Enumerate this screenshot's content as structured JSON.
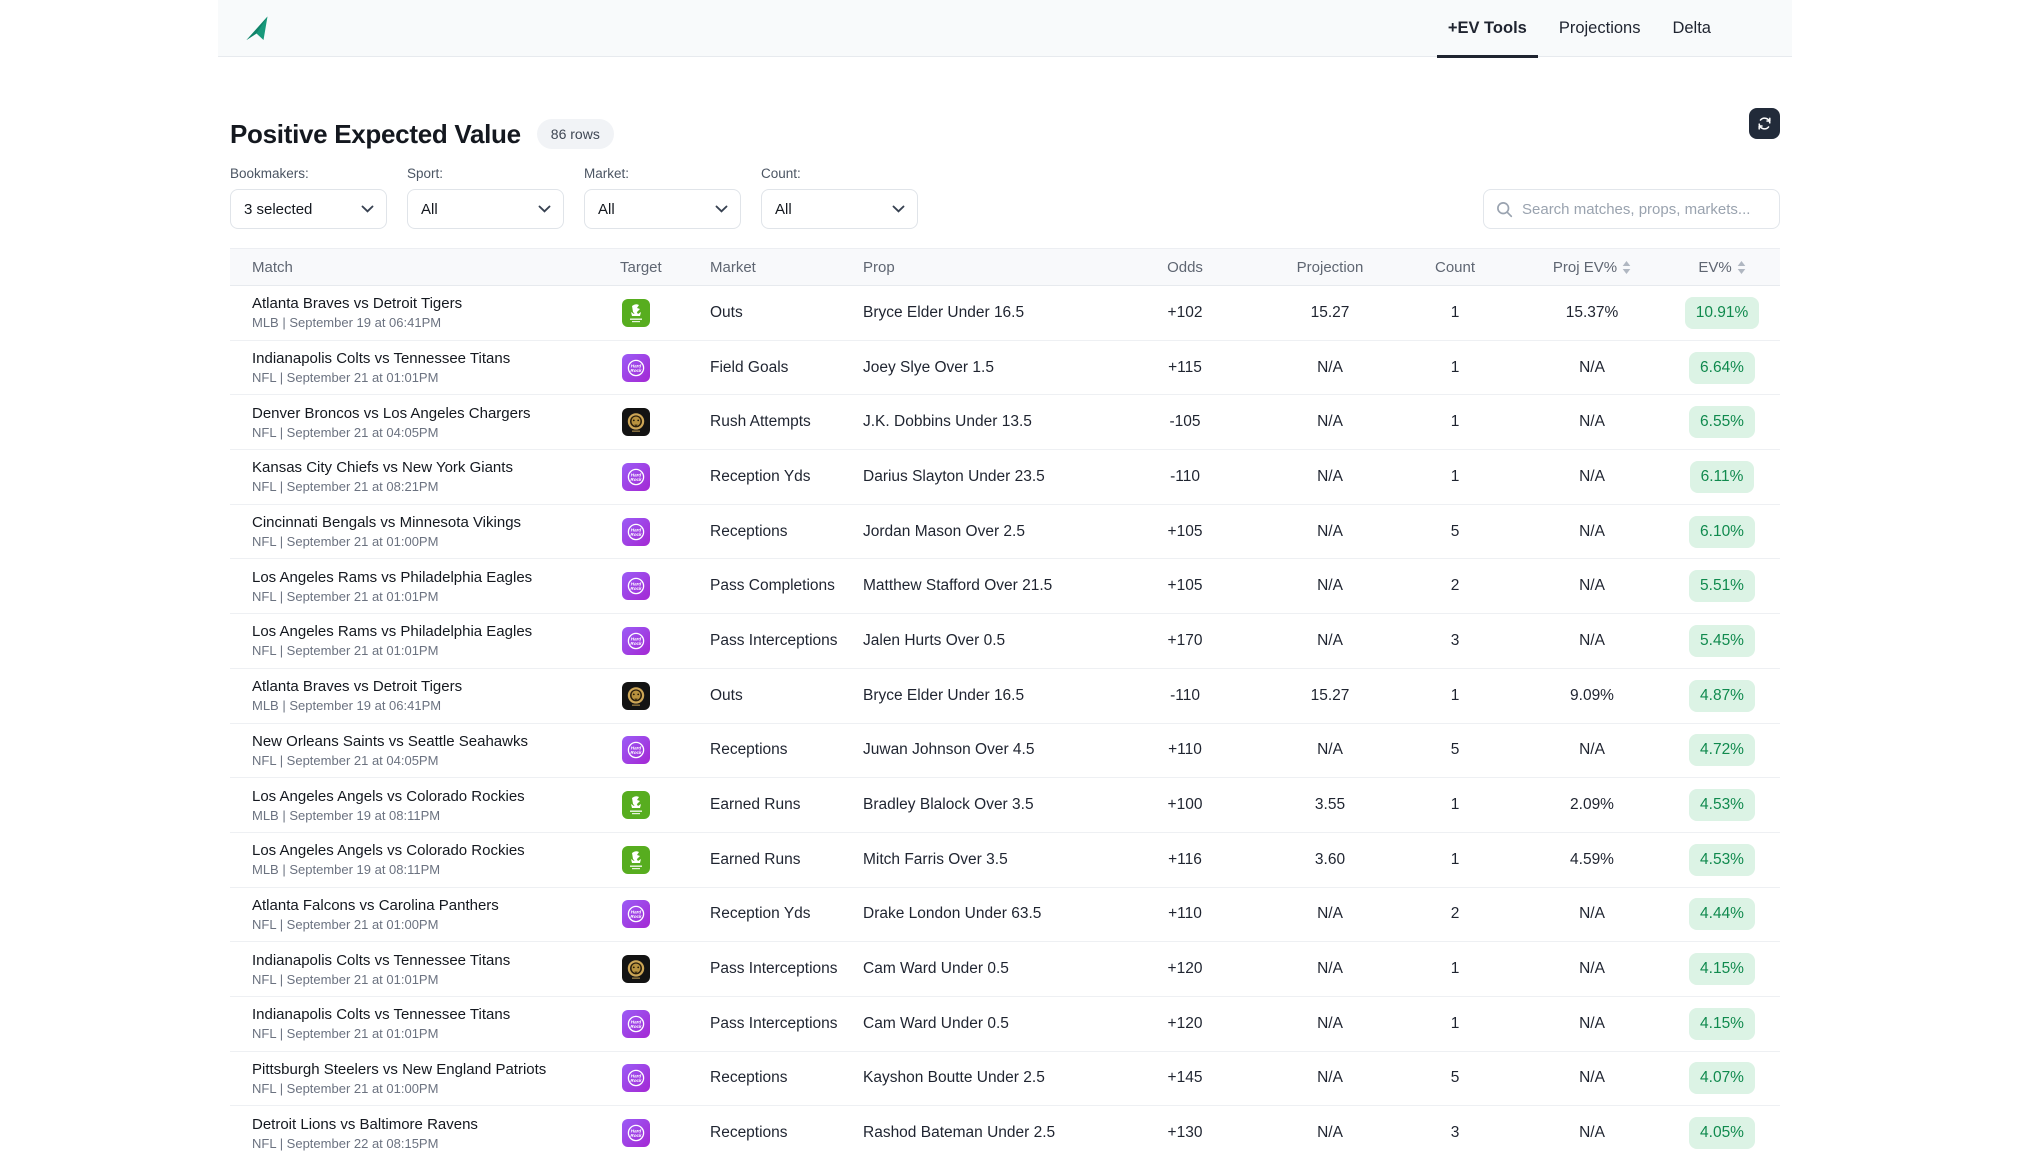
{
  "nav": {
    "tabs": [
      {
        "label": "+EV Tools",
        "active": true
      },
      {
        "label": "Projections",
        "active": false
      },
      {
        "label": "Delta",
        "active": false
      }
    ]
  },
  "page": {
    "title": "Positive Expected Value",
    "row_count_badge": "86 rows"
  },
  "filters": [
    {
      "id": "bookmakers",
      "label": "Bookmakers:",
      "value": "3 selected"
    },
    {
      "id": "sport",
      "label": "Sport:",
      "value": "All"
    },
    {
      "id": "market",
      "label": "Market:",
      "value": "All"
    },
    {
      "id": "count",
      "label": "Count:",
      "value": "All"
    }
  ],
  "search": {
    "placeholder": "Search matches, props, markets..."
  },
  "colors": {
    "accent_teal": "#18997b",
    "ev_badge_bg": "#dcf3e5",
    "ev_badge_text": "#108a4e",
    "refresh_bg": "#222b3a"
  },
  "table": {
    "columns": [
      {
        "label": "Match",
        "sortable": false
      },
      {
        "label": "Target",
        "sortable": false
      },
      {
        "label": "Market",
        "sortable": false
      },
      {
        "label": "Prop",
        "sortable": false
      },
      {
        "label": "Odds",
        "sortable": false
      },
      {
        "label": "Projection",
        "sortable": false
      },
      {
        "label": "Count",
        "sortable": false
      },
      {
        "label": "Proj EV%",
        "sortable": true
      },
      {
        "label": "EV%",
        "sortable": true
      }
    ],
    "rows": [
      {
        "match": "Atlanta Braves vs Detroit Tigers",
        "sub": "MLB | September 19 at 06:41PM",
        "bookmaker": "draftkings",
        "market": "Outs",
        "prop": "Bryce Elder Under 16.5",
        "odds": "+102",
        "projection": "15.27",
        "count": "1",
        "proj_ev": "15.37%",
        "ev": "10.91%"
      },
      {
        "match": "Indianapolis Colts vs Tennessee Titans",
        "sub": "NFL | September 21 at 01:01PM",
        "bookmaker": "hardrock",
        "market": "Field Goals",
        "prop": "Joey Slye Over 1.5",
        "odds": "+115",
        "projection": "N/A",
        "count": "1",
        "proj_ev": "N/A",
        "ev": "6.64%"
      },
      {
        "match": "Denver Broncos vs Los Angeles Chargers",
        "sub": "NFL | September 21 at 04:05PM",
        "bookmaker": "betmgm",
        "market": "Rush Attempts",
        "prop": "J.K. Dobbins Under 13.5",
        "odds": "-105",
        "projection": "N/A",
        "count": "1",
        "proj_ev": "N/A",
        "ev": "6.55%"
      },
      {
        "match": "Kansas City Chiefs vs New York Giants",
        "sub": "NFL | September 21 at 08:21PM",
        "bookmaker": "hardrock",
        "market": "Reception Yds",
        "prop": "Darius Slayton Under 23.5",
        "odds": "-110",
        "projection": "N/A",
        "count": "1",
        "proj_ev": "N/A",
        "ev": "6.11%"
      },
      {
        "match": "Cincinnati Bengals vs Minnesota Vikings",
        "sub": "NFL | September 21 at 01:00PM",
        "bookmaker": "hardrock",
        "market": "Receptions",
        "prop": "Jordan Mason Over 2.5",
        "odds": "+105",
        "projection": "N/A",
        "count": "5",
        "proj_ev": "N/A",
        "ev": "6.10%"
      },
      {
        "match": "Los Angeles Rams vs Philadelphia Eagles",
        "sub": "NFL | September 21 at 01:01PM",
        "bookmaker": "hardrock",
        "market": "Pass Completions",
        "prop": "Matthew Stafford Over 21.5",
        "odds": "+105",
        "projection": "N/A",
        "count": "2",
        "proj_ev": "N/A",
        "ev": "5.51%"
      },
      {
        "match": "Los Angeles Rams vs Philadelphia Eagles",
        "sub": "NFL | September 21 at 01:01PM",
        "bookmaker": "hardrock",
        "market": "Pass Interceptions",
        "prop": "Jalen Hurts Over 0.5",
        "odds": "+170",
        "projection": "N/A",
        "count": "3",
        "proj_ev": "N/A",
        "ev": "5.45%"
      },
      {
        "match": "Atlanta Braves vs Detroit Tigers",
        "sub": "MLB | September 19 at 06:41PM",
        "bookmaker": "betmgm",
        "market": "Outs",
        "prop": "Bryce Elder Under 16.5",
        "odds": "-110",
        "projection": "15.27",
        "count": "1",
        "proj_ev": "9.09%",
        "ev": "4.87%"
      },
      {
        "match": "New Orleans Saints vs Seattle Seahawks",
        "sub": "NFL | September 21 at 04:05PM",
        "bookmaker": "hardrock",
        "market": "Receptions",
        "prop": "Juwan Johnson Over 4.5",
        "odds": "+110",
        "projection": "N/A",
        "count": "5",
        "proj_ev": "N/A",
        "ev": "4.72%"
      },
      {
        "match": "Los Angeles Angels vs Colorado Rockies",
        "sub": "MLB | September 19 at 08:11PM",
        "bookmaker": "draftkings",
        "market": "Earned Runs",
        "prop": "Bradley Blalock Over 3.5",
        "odds": "+100",
        "projection": "3.55",
        "count": "1",
        "proj_ev": "2.09%",
        "ev": "4.53%"
      },
      {
        "match": "Los Angeles Angels vs Colorado Rockies",
        "sub": "MLB | September 19 at 08:11PM",
        "bookmaker": "draftkings",
        "market": "Earned Runs",
        "prop": "Mitch Farris Over 3.5",
        "odds": "+116",
        "projection": "3.60",
        "count": "1",
        "proj_ev": "4.59%",
        "ev": "4.53%"
      },
      {
        "match": "Atlanta Falcons vs Carolina Panthers",
        "sub": "NFL | September 21 at 01:00PM",
        "bookmaker": "hardrock",
        "market": "Reception Yds",
        "prop": "Drake London Under 63.5",
        "odds": "+110",
        "projection": "N/A",
        "count": "2",
        "proj_ev": "N/A",
        "ev": "4.44%"
      },
      {
        "match": "Indianapolis Colts vs Tennessee Titans",
        "sub": "NFL | September 21 at 01:01PM",
        "bookmaker": "betmgm",
        "market": "Pass Interceptions",
        "prop": "Cam Ward Under 0.5",
        "odds": "+120",
        "projection": "N/A",
        "count": "1",
        "proj_ev": "N/A",
        "ev": "4.15%"
      },
      {
        "match": "Indianapolis Colts vs Tennessee Titans",
        "sub": "NFL | September 21 at 01:01PM",
        "bookmaker": "hardrock",
        "market": "Pass Interceptions",
        "prop": "Cam Ward Under 0.5",
        "odds": "+120",
        "projection": "N/A",
        "count": "1",
        "proj_ev": "N/A",
        "ev": "4.15%"
      },
      {
        "match": "Pittsburgh Steelers vs New England Patriots",
        "sub": "NFL | September 21 at 01:00PM",
        "bookmaker": "hardrock",
        "market": "Receptions",
        "prop": "Kayshon Boutte Under 2.5",
        "odds": "+145",
        "projection": "N/A",
        "count": "5",
        "proj_ev": "N/A",
        "ev": "4.07%"
      },
      {
        "match": "Detroit Lions vs Baltimore Ravens",
        "sub": "NFL | September 22 at 08:15PM",
        "bookmaker": "hardrock",
        "market": "Receptions",
        "prop": "Rashod Bateman Under 2.5",
        "odds": "+130",
        "projection": "N/A",
        "count": "3",
        "proj_ev": "N/A",
        "ev": "4.05%"
      }
    ]
  }
}
